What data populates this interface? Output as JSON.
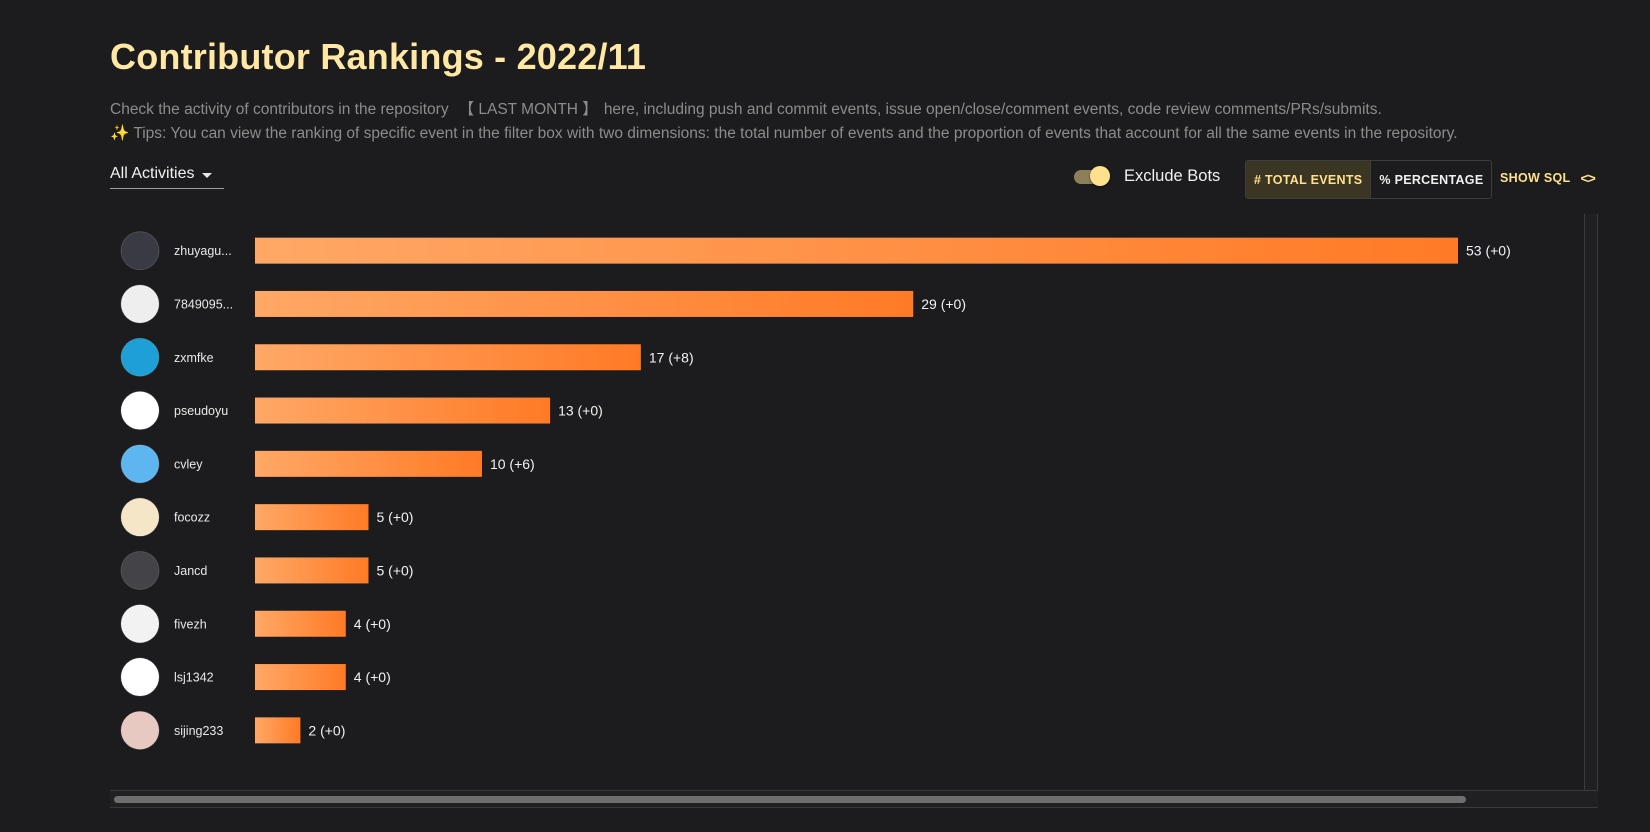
{
  "header": {
    "title": "Contributor Rankings - 2022/11",
    "description_before": "Check the activity of contributors in the repository",
    "description_period": "【 LAST MONTH 】",
    "description_after": "here, including push and commit events, issue open/close/comment events, code review comments/PRs/submits.",
    "tips_icon": "✨",
    "tips_text": "Tips: You can view the ranking of specific event in the filter box with two dimensions: the total number of events and the proportion of events that account for all the same events in the repository."
  },
  "controls": {
    "filter_label": "All Activities",
    "exclude_bots_label": "Exclude Bots",
    "exclude_bots_on": true,
    "total_events_label": "# TOTAL EVENTS",
    "percentage_label": "% PERCENTAGE",
    "active_mode": "total",
    "show_sql_label": "SHOW SQL",
    "code_icon": "<>"
  },
  "colors": {
    "title": "#ffe8a3",
    "accent": "#ffe08c",
    "bar_start": "#ffa866",
    "bar_end": "#ff7a26"
  },
  "chart_data": {
    "type": "bar",
    "orientation": "horizontal",
    "title": "",
    "xlabel": "",
    "ylabel": "",
    "xlim": [
      0,
      53
    ],
    "categories": [
      "zhuyagu...",
      "7849095...",
      "zxmfke",
      "pseudoyu",
      "cvley",
      "focozz",
      "Jancd",
      "fivezh",
      "lsj1342",
      "sijing233"
    ],
    "values": [
      53,
      29,
      17,
      13,
      10,
      5,
      5,
      4,
      4,
      2
    ],
    "changes": [
      "+0",
      "+0",
      "+8",
      "+0",
      "+6",
      "+0",
      "+0",
      "+0",
      "+0",
      "+0"
    ],
    "data_labels": [
      "53 (+0)",
      "29 (+0)",
      "17 (+8)",
      "13 (+0)",
      "10 (+6)",
      "5 (+0)",
      "5 (+0)",
      "4 (+0)",
      "4 (+0)",
      "2 (+0)"
    ],
    "avatar_colors": [
      "#3a3a44",
      "#eeeeee",
      "#1e9fd6",
      "#ffffff",
      "#5eb6f0",
      "#f5e6c8",
      "#444448",
      "#f2f2f2",
      "#ffffff",
      "#e8c9c2"
    ]
  }
}
